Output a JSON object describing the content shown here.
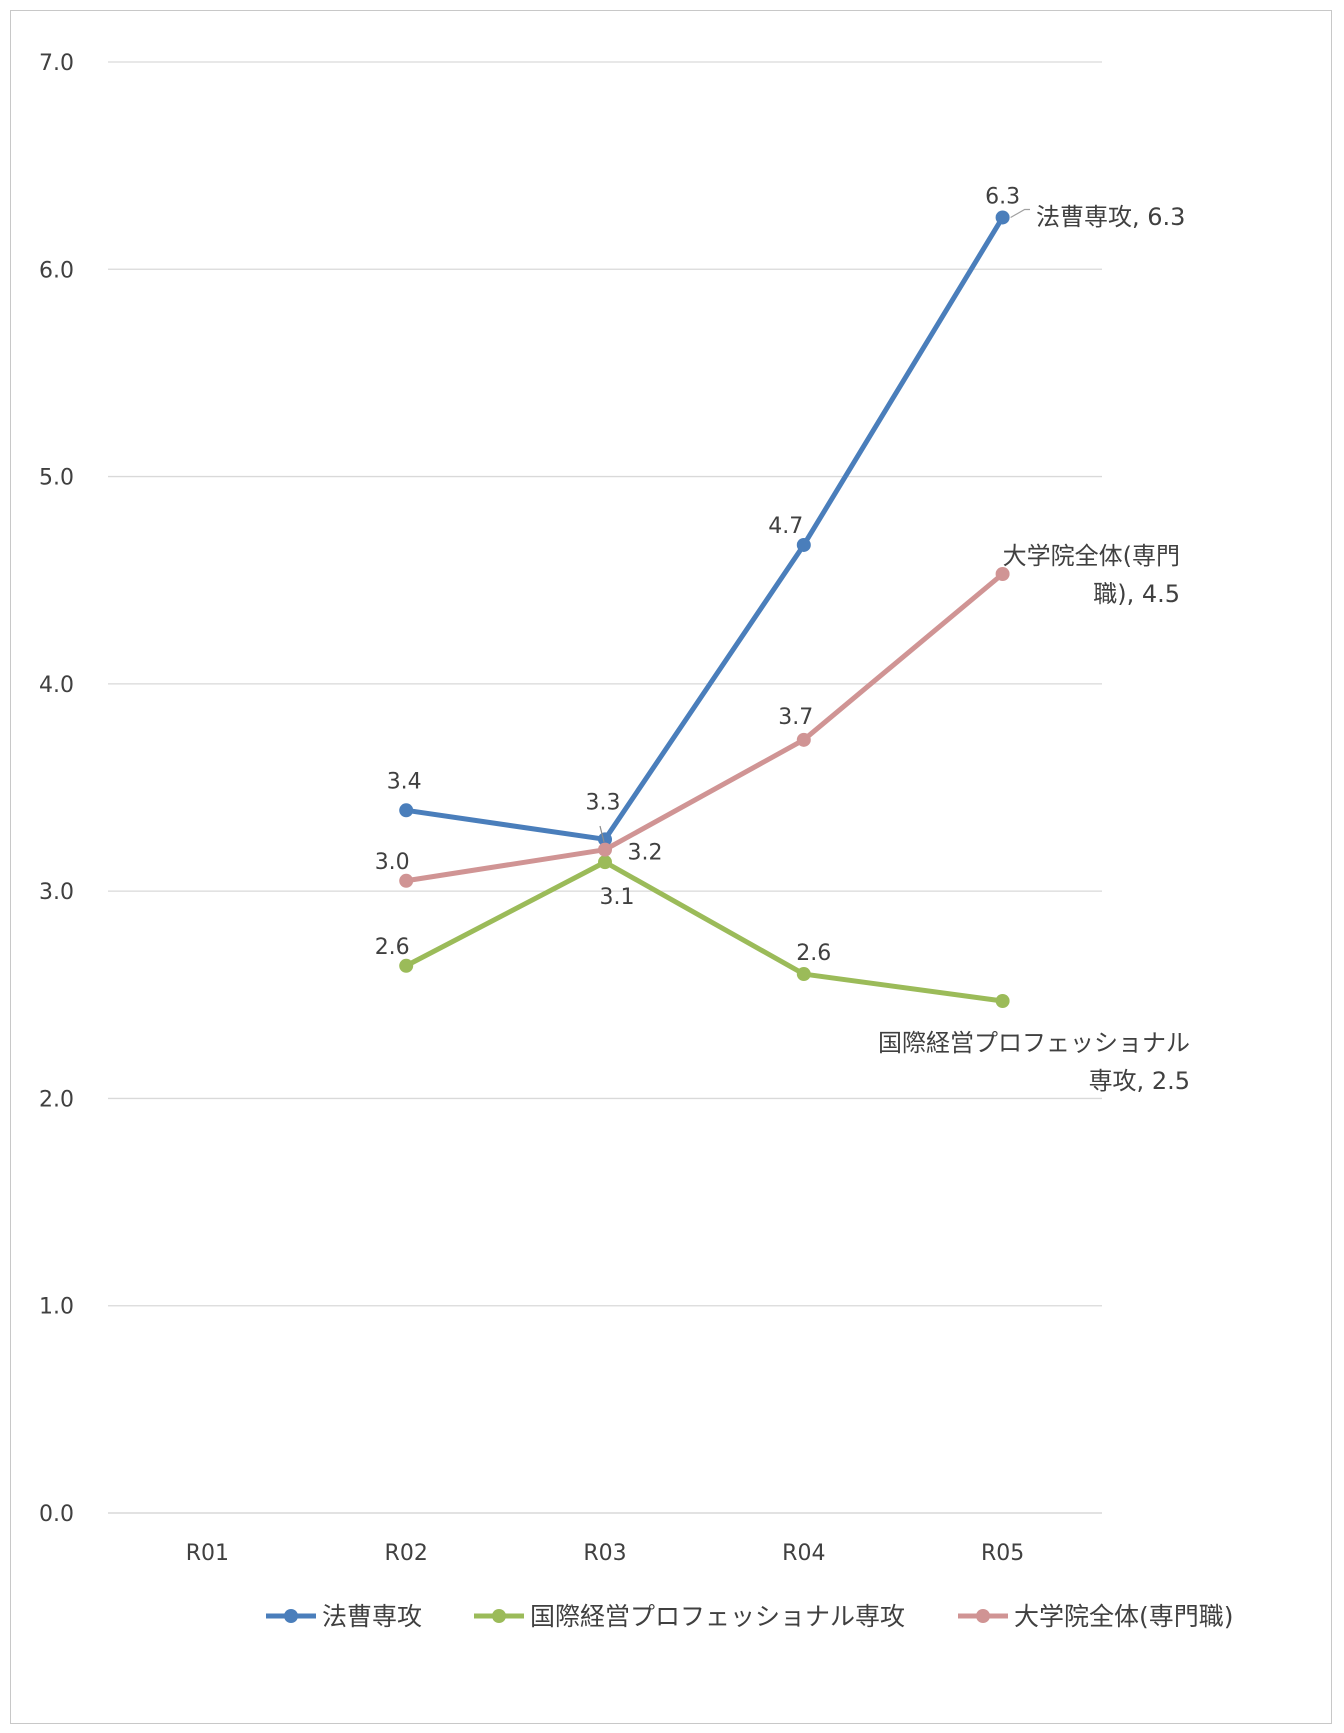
{
  "chart_data": {
    "type": "line",
    "categories": [
      "R01",
      "R02",
      "R03",
      "R04",
      "R05"
    ],
    "ylim": [
      0.0,
      7.0
    ],
    "yticks": [
      "0.0",
      "1.0",
      "2.0",
      "3.0",
      "4.0",
      "5.0",
      "6.0",
      "7.0"
    ],
    "grid": true,
    "legend_position": "bottom",
    "series": [
      {
        "name": "法曹専攻",
        "color": "#4a7ebb",
        "values": [
          null,
          3.39,
          3.25,
          4.67,
          6.25
        ],
        "labels": [
          "",
          "3.4",
          "3.3",
          "4.7",
          "6.3"
        ],
        "end_label": [
          "法曹専攻, 6.3"
        ]
      },
      {
        "name": "国際経営プロフェッショナル専攻",
        "color": "#9bbb59",
        "values": [
          null,
          2.64,
          3.14,
          2.6,
          2.47
        ],
        "labels": [
          "",
          "2.6",
          "3.1",
          "2.6",
          ""
        ],
        "end_label": [
          "国際経営プロフェッショナル",
          "専攻, 2.5"
        ]
      },
      {
        "name": "大学院全体(専門職)",
        "color": "#d09494",
        "values": [
          null,
          3.05,
          3.2,
          3.73,
          4.53
        ],
        "labels": [
          "",
          "3.0",
          "3.2",
          "3.7",
          ""
        ],
        "end_label": [
          "大学院全体(専門",
          "職), 4.5"
        ]
      }
    ]
  }
}
